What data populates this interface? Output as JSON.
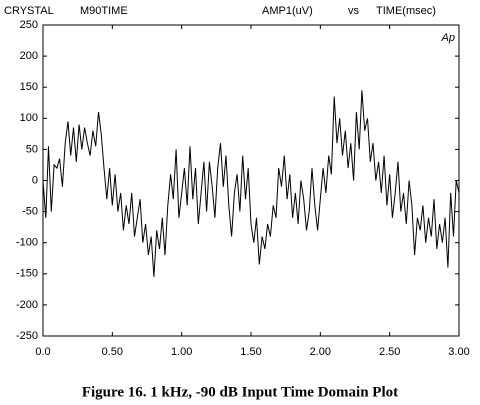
{
  "chart_data": {
    "type": "line",
    "title": "CRYSTAL",
    "subtitle": "M90TIME",
    "ylabel": "AMP1(uV)",
    "vs_label": "vs",
    "xlabel": "TIME(msec)",
    "annotation": "Ap",
    "caption": "Figure 16.  1 kHz, -90 dB Input Time Domain Plot",
    "color": "#000000",
    "xlim": [
      0,
      3
    ],
    "ylim": [
      -250,
      250
    ],
    "xticks": [
      {
        "value": 0,
        "label": "0.0"
      },
      {
        "value": 0.5,
        "label": "0.50"
      },
      {
        "value": 1,
        "label": "1.00"
      },
      {
        "value": 1.5,
        "label": "1.50"
      },
      {
        "value": 2,
        "label": "2.00"
      },
      {
        "value": 2.5,
        "label": "2.50"
      },
      {
        "value": 3,
        "label": "3.00"
      }
    ],
    "yticks": [
      250,
      200,
      150,
      100,
      50,
      0,
      -50,
      -100,
      -150,
      -200,
      -250
    ],
    "x": [
      0,
      0.02,
      0.04,
      0.06,
      0.08,
      0.1,
      0.12,
      0.14,
      0.16,
      0.18,
      0.2,
      0.22,
      0.24,
      0.26,
      0.28,
      0.3,
      0.32,
      0.34,
      0.36,
      0.38,
      0.4,
      0.42,
      0.44,
      0.46,
      0.48,
      0.5,
      0.52,
      0.54,
      0.56,
      0.58,
      0.6,
      0.62,
      0.64,
      0.66,
      0.68,
      0.7,
      0.72,
      0.74,
      0.76,
      0.78,
      0.8,
      0.82,
      0.84,
      0.86,
      0.88,
      0.9,
      0.92,
      0.94,
      0.96,
      0.98,
      1,
      1.02,
      1.04,
      1.06,
      1.08,
      1.1,
      1.12,
      1.14,
      1.16,
      1.18,
      1.2,
      1.22,
      1.24,
      1.26,
      1.28,
      1.3,
      1.32,
      1.34,
      1.36,
      1.38,
      1.4,
      1.42,
      1.44,
      1.46,
      1.48,
      1.5,
      1.52,
      1.54,
      1.56,
      1.58,
      1.6,
      1.62,
      1.64,
      1.66,
      1.68,
      1.7,
      1.72,
      1.74,
      1.76,
      1.78,
      1.8,
      1.82,
      1.84,
      1.86,
      1.88,
      1.9,
      1.92,
      1.94,
      1.96,
      1.98,
      2,
      2.02,
      2.04,
      2.06,
      2.08,
      2.1,
      2.12,
      2.14,
      2.16,
      2.18,
      2.2,
      2.22,
      2.24,
      2.26,
      2.28,
      2.3,
      2.32,
      2.34,
      2.36,
      2.38,
      2.4,
      2.42,
      2.44,
      2.46,
      2.48,
      2.5,
      2.52,
      2.54,
      2.56,
      2.58,
      2.6,
      2.62,
      2.64,
      2.66,
      2.68,
      2.7,
      2.72,
      2.74,
      2.76,
      2.78,
      2.8,
      2.82,
      2.84,
      2.86,
      2.88,
      2.9,
      2.92,
      2.94,
      2.96,
      2.98,
      3
    ],
    "values": [
      0,
      -60,
      55,
      -50,
      25,
      20,
      35,
      -10,
      60,
      95,
      40,
      85,
      30,
      90,
      50,
      85,
      60,
      40,
      80,
      55,
      110,
      75,
      20,
      -30,
      20,
      -40,
      10,
      -50,
      -20,
      -80,
      -40,
      -70,
      -20,
      -90,
      -60,
      -30,
      -100,
      -70,
      -120,
      -90,
      -155,
      -80,
      -110,
      -60,
      -120,
      -40,
      10,
      -30,
      50,
      -60,
      -20,
      20,
      -40,
      55,
      -30,
      20,
      -70,
      -20,
      30,
      -50,
      30,
      -10,
      -60,
      20,
      60,
      -10,
      40,
      -40,
      -90,
      -20,
      10,
      -50,
      40,
      -30,
      20,
      -70,
      -100,
      -60,
      -135,
      -90,
      -110,
      -70,
      -90,
      -40,
      -60,
      20,
      -10,
      40,
      -30,
      10,
      -60,
      -20,
      -70,
      0,
      -30,
      -80,
      -50,
      20,
      -40,
      -80,
      -30,
      20,
      -20,
      40,
      10,
      135,
      60,
      100,
      40,
      80,
      20,
      60,
      0,
      110,
      50,
      145,
      80,
      100,
      30,
      60,
      0,
      30,
      -20,
      40,
      -40,
      10,
      -60,
      -20,
      30,
      -50,
      -20,
      -70,
      0,
      -40,
      -120,
      -60,
      -80,
      -40,
      -100,
      -60,
      -90,
      -30,
      -110,
      -70,
      -100,
      -60,
      -140,
      -20,
      -90,
      0,
      -20
    ]
  }
}
